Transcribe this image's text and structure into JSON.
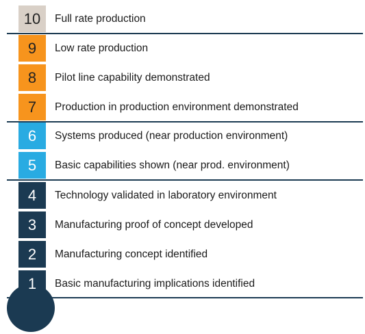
{
  "levels": [
    {
      "number": "10",
      "label": "Full rate production"
    },
    {
      "number": "9",
      "label": "Low rate production"
    },
    {
      "number": "8",
      "label": "Pilot line capability demonstrated"
    },
    {
      "number": "7",
      "label": "Production in production environment demonstrated"
    },
    {
      "number": "6",
      "label": "Systems produced (near production environment)"
    },
    {
      "number": "5",
      "label": "Basic capabilities shown (near prod. environment)"
    },
    {
      "number": "4",
      "label": "Technology validated in laboratory environment"
    },
    {
      "number": "3",
      "label": "Manufacturing proof of concept developed"
    },
    {
      "number": "2",
      "label": "Manufacturing concept identified"
    },
    {
      "number": "1",
      "label": "Basic manufacturing implications identified"
    }
  ]
}
